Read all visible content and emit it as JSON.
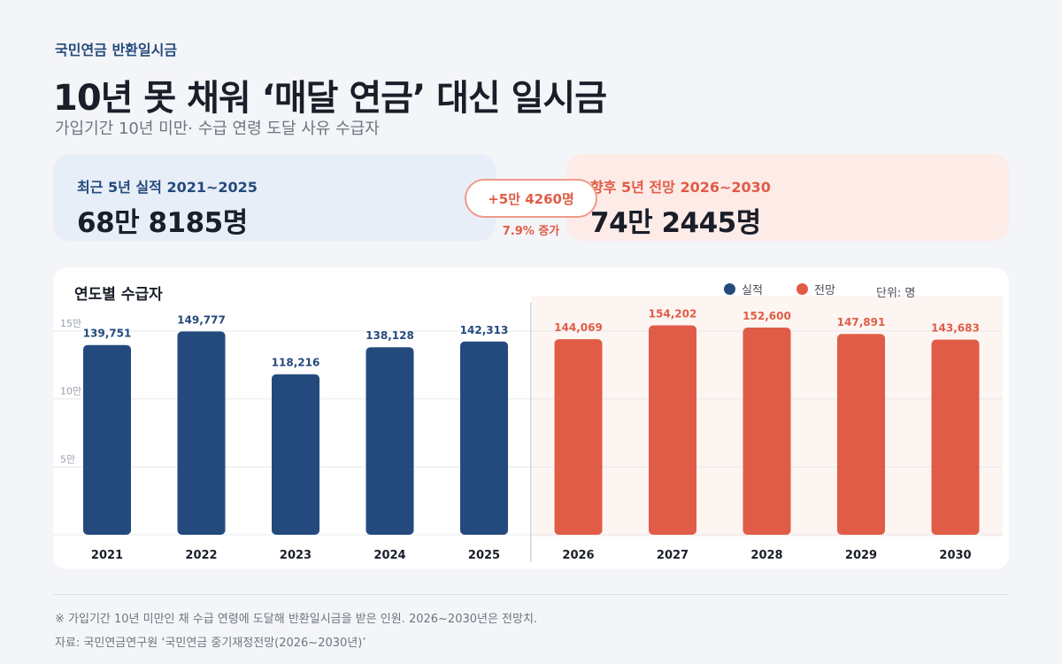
{
  "header": {
    "kicker": "국민연금 반환일시금",
    "title": "10년 못 채워 ‘매달 연금’ 대신 일시금",
    "subtitle": "가입기간 10년 미만· 수급 연령 도달 사유 수급자"
  },
  "summary": {
    "recent_label": "최근 5년 실적  2021~2025",
    "recent_value": "68만 8185명",
    "forecast_label": "향후 5년 전망  2026~2030",
    "forecast_value": "74만 2445명",
    "change": "+5만 4260명",
    "change_pct": "7.9% 증가"
  },
  "colors": {
    "actual": "#244a7d",
    "forecast": "#e05c46",
    "forecast_bg": "#fdf5f2"
  },
  "chart_data": {
    "type": "bar",
    "title": "연도별 수급자",
    "categories": [
      "2021",
      "2022",
      "2023",
      "2024",
      "2025",
      "2026",
      "2027",
      "2028",
      "2029",
      "2030"
    ],
    "values": [
      139751,
      149777,
      118216,
      138128,
      142313,
      144069,
      154202,
      152600,
      147891,
      143683
    ],
    "value_labels": [
      "139,751",
      "149,777",
      "118,216",
      "138,128",
      "142,313",
      "144,069",
      "154,202",
      "152,600",
      "147,891",
      "143,683"
    ],
    "series_kind": [
      "actual",
      "actual",
      "actual",
      "actual",
      "actual",
      "forecast",
      "forecast",
      "forecast",
      "forecast",
      "forecast"
    ],
    "legend": [
      {
        "name": "실적",
        "color": "#244a7d"
      },
      {
        "name": "전망",
        "color": "#e05c46"
      }
    ],
    "legend_position": "top-right",
    "unit": "단위: 명",
    "ylim": [
      0,
      150000
    ],
    "yticks": [
      {
        "value": 50000,
        "label": "5만"
      },
      {
        "value": 100000,
        "label": "10만"
      },
      {
        "value": 150000,
        "label": "15만"
      }
    ],
    "grid": true
  },
  "footer": {
    "note": "※ 가입기간 10년 미만인 채 수급 연령에 도달해 반환일시금을 받은 인원. 2026~2030년은 전망치.",
    "source": "자료: 국민연금연구원 ‘국민연금 중기재정전망(2026~2030년)’"
  }
}
